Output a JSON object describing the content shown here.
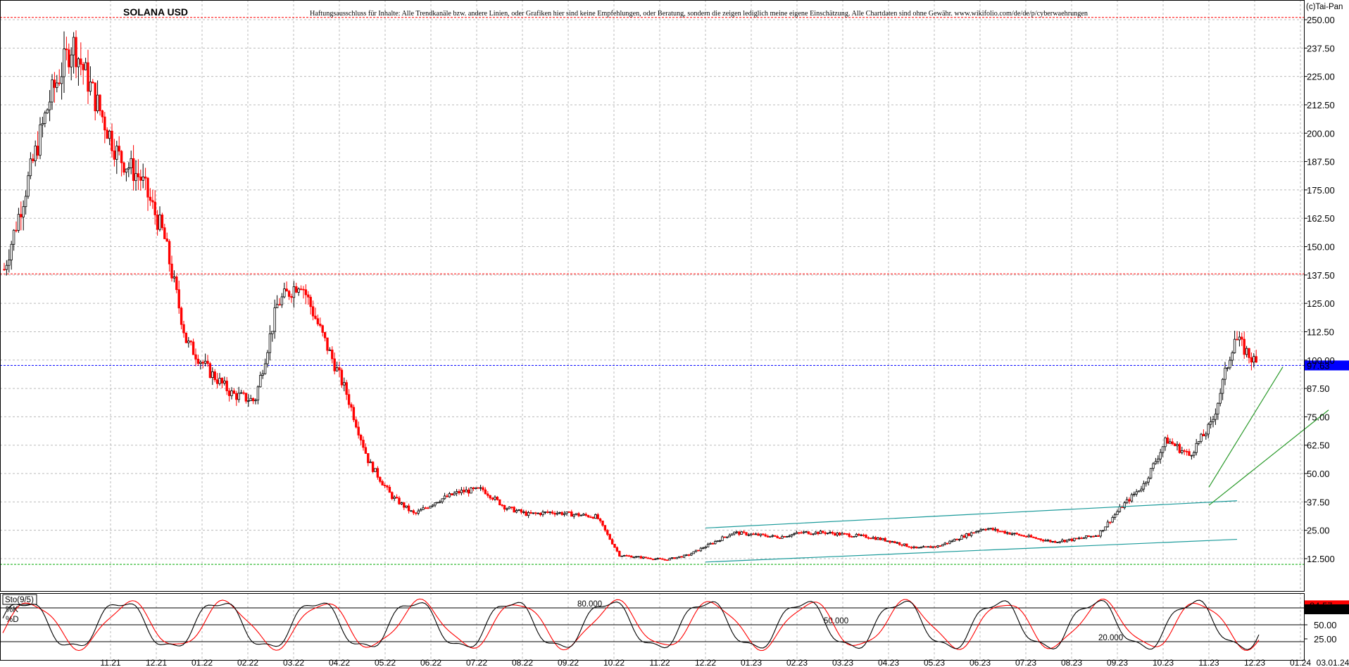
{
  "header": {
    "title": "SOLANA USD",
    "disclaimer": "Haftungsausschluss für Inhalte: Alle Trendkanäle bzw. andere Linien, oder Grafiken hier sind keine Empfehlungen, oder Beratung, sondern die zeigen lediglich meine eigene Einschätzung. Alle Chartdaten sind ohne Gewähr. www.wikifolio.com/de/de/p/cyberwaehrungen",
    "copyright": "(c)Tai-Pan"
  },
  "colors": {
    "bull": "#000000",
    "bear": "#ff0000",
    "channel_teal": "#1a9a9a",
    "channel_green": "#2a9a2a",
    "last_price_bg": "#0000ff",
    "k_badge_bg": "#ff0000"
  },
  "chart_data": [
    {
      "type": "candlestick",
      "title": "SOLANA USD",
      "ylim": [
        0,
        262
      ],
      "y_ticks": [
        "12.500",
        "25.00",
        "37.50",
        "50.00",
        "62.50",
        "75.00",
        "87.50",
        "100.00",
        "112.50",
        "125.00",
        "137.50",
        "150.00",
        "162.50",
        "175.00",
        "187.50",
        "200.00",
        "212.50",
        "225.00",
        "237.50",
        "250.00"
      ],
      "x_tick_labels": [
        "11.21",
        "12.21",
        "01.22",
        "02.22",
        "03.22",
        "04.22",
        "05.22",
        "06.22",
        "07.22",
        "08.22",
        "09.22",
        "10.22",
        "11.22",
        "12.22",
        "01.23",
        "02.23",
        "03.23",
        "04.23",
        "05.23",
        "06.23",
        "07.23",
        "08.23",
        "09.23",
        "10.23",
        "11.23",
        "12.23",
        "01.24"
      ],
      "x_range": [
        "10.21",
        "01.24"
      ],
      "last_date": "03.01.24",
      "last_price": "97.63",
      "horizontal_levels": [
        {
          "value": 251,
          "style": "dashed",
          "color": "#ff0000"
        },
        {
          "value": 138,
          "style": "dashed",
          "color": "#ff0000"
        },
        {
          "value": 97.63,
          "style": "dashed",
          "color": "#0000ff"
        },
        {
          "value": 10,
          "style": "dashed",
          "color": "#00aa00"
        }
      ],
      "series_path": [
        [
          "10.21",
          140
        ],
        [
          "11.21",
          215
        ],
        [
          "11.21",
          240
        ],
        [
          "12.21",
          215
        ],
        [
          "12.21",
          190
        ],
        [
          "01.22",
          180
        ],
        [
          "01.22",
          155
        ],
        [
          "02.22",
          108
        ],
        [
          "02.22",
          95
        ],
        [
          "03.22",
          85
        ],
        [
          "03.22",
          82
        ],
        [
          "04.22",
          125
        ],
        [
          "04.22",
          135
        ],
        [
          "05.22",
          110
        ],
        [
          "05.22",
          86
        ],
        [
          "06.22",
          55
        ],
        [
          "06.22",
          40
        ],
        [
          "07.22",
          32
        ],
        [
          "07.22",
          38
        ],
        [
          "08.22",
          42
        ],
        [
          "08.22",
          43
        ],
        [
          "09.22",
          35
        ],
        [
          "09.22",
          32
        ],
        [
          "10.22",
          33
        ],
        [
          "10.22",
          32
        ],
        [
          "11.22",
          31
        ],
        [
          "11.22",
          14
        ],
        [
          "12.22",
          13
        ],
        [
          "12.22",
          12
        ],
        [
          "01.23",
          14
        ],
        [
          "02.23",
          24
        ],
        [
          "02.23",
          23
        ],
        [
          "03.23",
          22
        ],
        [
          "03.23",
          24
        ],
        [
          "04.23",
          24
        ],
        [
          "05.23",
          22
        ],
        [
          "05.23",
          20
        ],
        [
          "06.23",
          17
        ],
        [
          "06.23",
          18
        ],
        [
          "07.23",
          22
        ],
        [
          "07.23",
          26
        ],
        [
          "08.23",
          24
        ],
        [
          "08.23",
          22
        ],
        [
          "09.23",
          20
        ],
        [
          "09.23",
          21
        ],
        [
          "10.23",
          23
        ],
        [
          "10.23",
          35
        ],
        [
          "11.23",
          45
        ],
        [
          "11.23",
          65
        ],
        [
          "12.23",
          58
        ],
        [
          "12.23",
          72
        ],
        [
          "01.24",
          110
        ],
        [
          "01.24",
          97.63
        ]
      ],
      "channels": [
        {
          "color": "teal",
          "upper": [
            [
              "12.22",
              26
            ],
            [
              "11.23",
              38
            ]
          ],
          "lower": [
            [
              "12.22",
              11
            ],
            [
              "11.23",
              21
            ]
          ]
        },
        {
          "color": "green",
          "upper": [
            [
              "11.23",
              44
            ],
            [
              "12.23",
              97
            ]
          ],
          "lower": [
            [
              "11.23",
              36
            ],
            [
              "01.24",
              78
            ]
          ]
        }
      ]
    },
    {
      "type": "line",
      "title": "Sto(9/5)",
      "ylim": [
        0,
        100
      ],
      "y_ticks": [
        "25.00",
        "50.00",
        "75.00"
      ],
      "levels": [
        {
          "value": 80,
          "label": "80.000"
        },
        {
          "value": 50,
          "label": "50.000"
        },
        {
          "value": 20,
          "label": "20.000"
        }
      ],
      "series": [
        {
          "name": "%K",
          "color": "#000000",
          "last": "77.50"
        },
        {
          "name": "%D",
          "color": "#ff0000",
          "last": "84.57"
        }
      ]
    }
  ]
}
